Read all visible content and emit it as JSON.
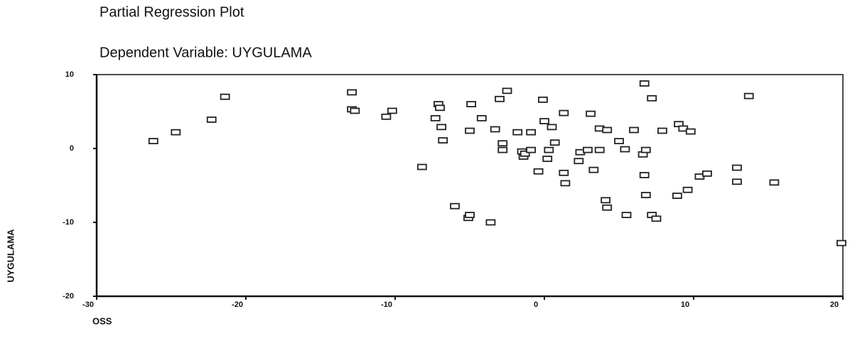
{
  "chart_data": {
    "type": "scatter",
    "title": "Partial Regression Plot",
    "subtitle": "Dependent Variable: UYGULAMA",
    "x_label": "OSS",
    "y_label": "UYGULAMA",
    "xlim": [
      -30,
      20
    ],
    "xticks": [
      -30,
      -20,
      -10,
      0,
      10,
      20
    ],
    "ylim": [
      -20,
      10
    ],
    "yticks": [
      -20,
      -10,
      0,
      10
    ],
    "color": "#222222",
    "series": [
      {
        "x": [
          -26.2,
          -24.7,
          -22.3,
          -21.4,
          -12.9,
          -12.9,
          -12.7,
          -10.6,
          -10.2,
          -8.2,
          -7.3,
          -7.1,
          -7.0,
          -6.9,
          -6.8,
          -6.0,
          -5.1,
          -5.0,
          -5.0,
          -4.9,
          -4.2,
          -3.6,
          -3.3,
          -3.0,
          -2.8,
          -2.8,
          -2.5,
          -1.8,
          -1.5,
          -1.4,
          -1.3,
          -0.9,
          -0.9,
          -0.4,
          -0.1,
          0.0,
          0.3,
          0.2,
          0.5,
          0.7,
          1.3,
          1.3,
          1.4,
          2.3,
          2.4,
          2.9,
          3.1,
          3.3,
          3.7,
          3.7,
          4.1,
          4.2,
          4.2,
          5.0,
          5.4,
          5.5,
          6.0,
          6.7,
          6.6,
          6.7,
          6.8,
          6.8,
          7.2,
          7.2,
          7.5,
          7.9,
          8.9,
          9.0,
          9.3,
          9.6,
          9.8,
          10.4,
          10.9,
          12.9,
          12.9,
          13.7,
          15.4,
          19.9
        ],
        "values": [
          1.0,
          2.2,
          3.9,
          7.0,
          7.6,
          5.3,
          5.1,
          4.3,
          5.1,
          -2.5,
          4.1,
          6.0,
          5.5,
          2.9,
          1.1,
          -7.8,
          -9.4,
          -9.0,
          2.4,
          6.0,
          4.1,
          -10.0,
          2.6,
          6.7,
          0.7,
          -0.2,
          7.8,
          2.2,
          -0.4,
          -1.1,
          -0.7,
          2.2,
          -0.2,
          -3.1,
          6.6,
          3.7,
          -0.2,
          -1.4,
          2.9,
          0.8,
          4.8,
          -3.3,
          -4.7,
          -1.7,
          -0.5,
          -0.2,
          4.7,
          -2.9,
          2.7,
          -0.2,
          -7.0,
          -8.0,
          2.5,
          1.0,
          -0.1,
          -9.0,
          2.5,
          8.8,
          -0.8,
          -3.6,
          -0.2,
          -6.3,
          6.8,
          -9.0,
          -9.5,
          2.4,
          -6.4,
          3.3,
          2.7,
          -5.6,
          2.3,
          -3.8,
          -3.4,
          -2.6,
          -4.5,
          7.1,
          -4.6,
          -12.8
        ]
      }
    ]
  }
}
